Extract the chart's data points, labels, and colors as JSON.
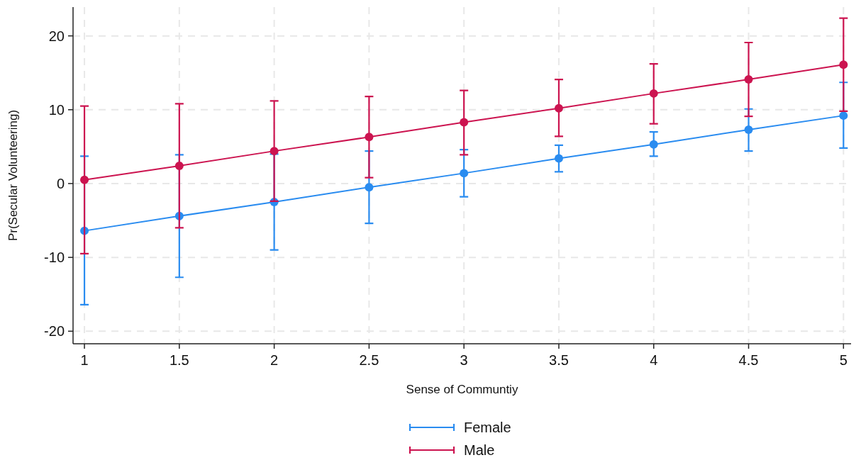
{
  "chart_data": {
    "type": "line",
    "xlabel": "Sense of Communtiy",
    "ylabel": "Pr(Secular Volunteering)",
    "x": [
      1,
      1.5,
      2,
      2.5,
      3,
      3.5,
      4,
      4.5,
      5
    ],
    "series": [
      {
        "name": "Female",
        "color": "#2a8cf0",
        "values": [
          -6.4,
          -4.4,
          -2.5,
          -0.5,
          1.4,
          3.4,
          5.3,
          7.3,
          9.2
        ],
        "errors": [
          [
            -16.4,
            3.7
          ],
          [
            -12.7,
            3.9
          ],
          [
            -9.0,
            4.0
          ],
          [
            -5.4,
            4.4
          ],
          [
            -1.8,
            4.6
          ],
          [
            1.6,
            5.2
          ],
          [
            3.7,
            7.0
          ],
          [
            4.4,
            10.1
          ],
          [
            4.8,
            13.7
          ]
        ]
      },
      {
        "name": "Male",
        "color": "#cc1450",
        "values": [
          0.5,
          2.4,
          4.4,
          6.3,
          8.3,
          10.2,
          12.2,
          14.1,
          16.1
        ],
        "errors": [
          [
            -9.5,
            10.5
          ],
          [
            -6.0,
            10.8
          ],
          [
            -2.4,
            11.2
          ],
          [
            0.8,
            11.8
          ],
          [
            3.9,
            12.6
          ],
          [
            6.4,
            14.1
          ],
          [
            8.1,
            16.2
          ],
          [
            9.1,
            19.1
          ],
          [
            9.8,
            22.4
          ]
        ]
      }
    ],
    "xlim": [
      0.94,
      5.04
    ],
    "xticks": [
      1,
      1.5,
      2,
      2.5,
      3,
      3.5,
      4,
      4.5,
      5
    ],
    "ylim": [
      -21.7,
      23.9
    ],
    "yticks": [
      -20,
      -10,
      0,
      10,
      20
    ],
    "grid": true,
    "legend": "bottom",
    "marker": "circle",
    "line_style": "solid"
  }
}
